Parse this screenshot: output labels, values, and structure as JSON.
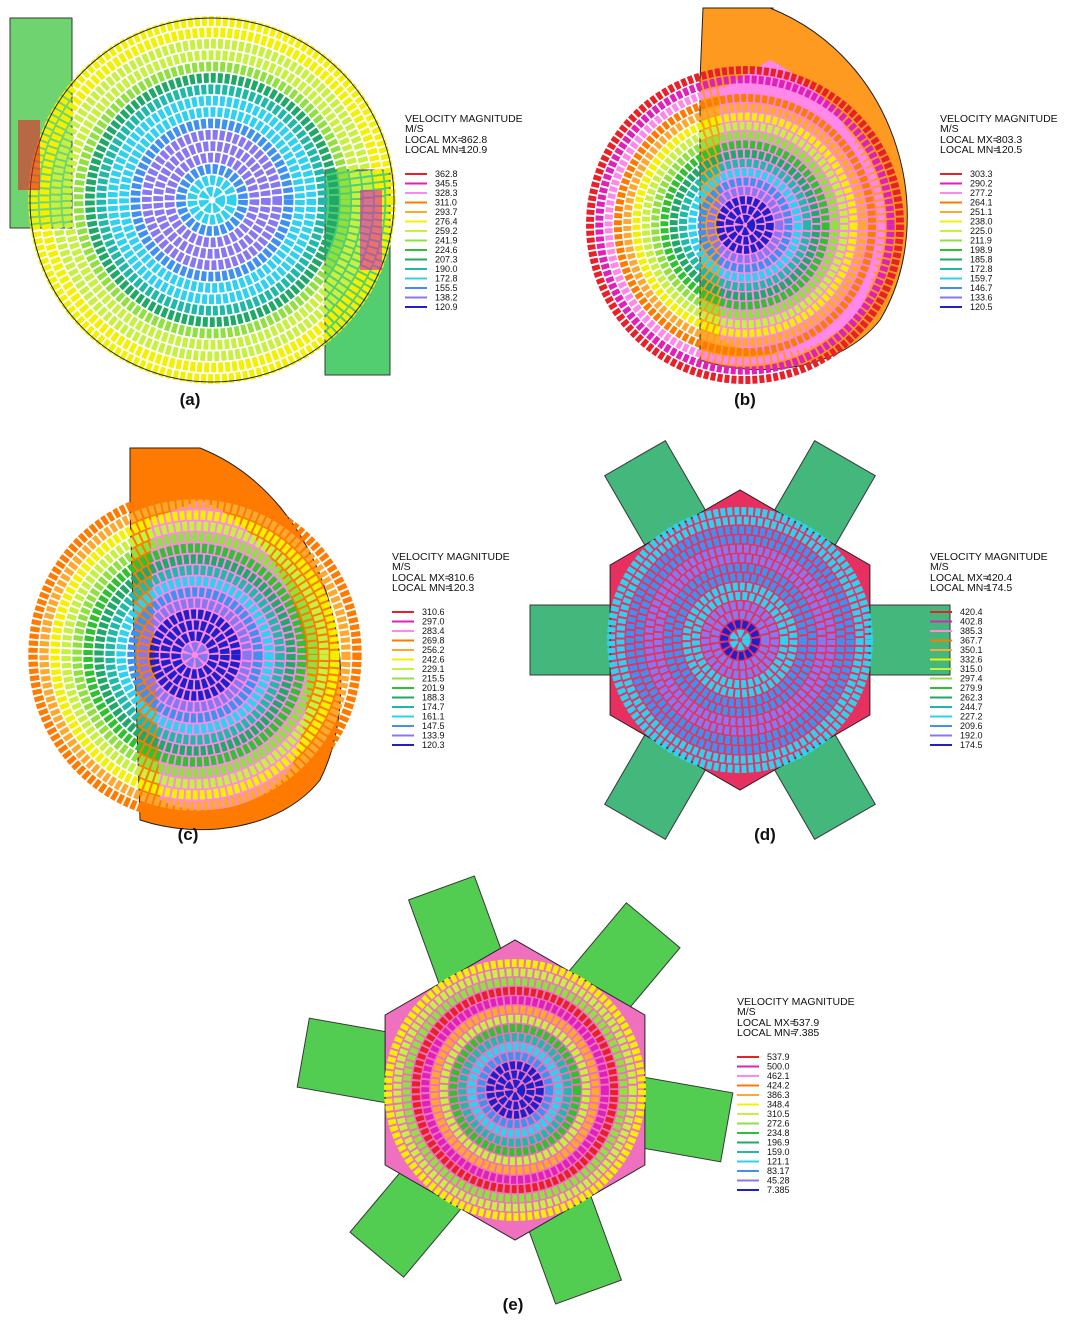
{
  "panels": [
    {
      "label": "(a)",
      "legend": {
        "title": "VELOCITY MAGNITUDE",
        "unit": "M/S",
        "mx_label": "LOCAL MX=",
        "mx": "362.8",
        "mn_label": "LOCAL MN=",
        "mn": "120.9",
        "levels": [
          "362.8",
          "345.5",
          "328.3",
          "311.0",
          "293.7",
          "276.4",
          "259.2",
          "241.9",
          "224.6",
          "207.3",
          "190.0",
          "172.8",
          "155.5",
          "138.2",
          "120.9"
        ]
      }
    },
    {
      "label": "(b)",
      "legend": {
        "title": "VELOCITY MAGNITUDE",
        "unit": "M/S",
        "mx_label": "LOCAL MX=",
        "mx": "303.3",
        "mn_label": "LOCAL MN=",
        "mn": "120.5",
        "levels": [
          "303.3",
          "290.2",
          "277.2",
          "264.1",
          "251.1",
          "238.0",
          "225.0",
          "211.9",
          "198.9",
          "185.8",
          "172.8",
          "159.7",
          "146.7",
          "133.6",
          "120.5"
        ]
      }
    },
    {
      "label": "(c)",
      "legend": {
        "title": "VELOCITY MAGNITUDE",
        "unit": "M/S",
        "mx_label": "LOCAL MX=",
        "mx": "310.6",
        "mn_label": "LOCAL MN=",
        "mn": "120.3",
        "levels": [
          "310.6",
          "297.0",
          "283.4",
          "269.8",
          "256.2",
          "242.6",
          "229.1",
          "215.5",
          "201.9",
          "188.3",
          "174.7",
          "161.1",
          "147.5",
          "133.9",
          "120.3"
        ]
      }
    },
    {
      "label": "(d)",
      "legend": {
        "title": "VELOCITY MAGNITUDE",
        "unit": "M/S",
        "mx_label": "LOCAL MX=",
        "mx": "420.4",
        "mn_label": "LOCAL MN=",
        "mn": "174.5",
        "levels": [
          "420.4",
          "402.8",
          "385.3",
          "367.7",
          "350.1",
          "332.6",
          "315.0",
          "297.4",
          "279.9",
          "262.3",
          "244.7",
          "227.2",
          "209.6",
          "192.0",
          "174.5"
        ]
      }
    },
    {
      "label": "(e)",
      "legend": {
        "title": "VELOCITY MAGNITUDE",
        "unit": "M/S",
        "mx_label": "LOCAL MX=",
        "mx": "537.9",
        "mn_label": "LOCAL MN=",
        "mn": "7.385",
        "levels": [
          "537.9",
          "500.0",
          "462.1",
          "424.2",
          "386.3",
          "348.4",
          "310.5",
          "272.6",
          "234.8",
          "196.9",
          "159.0",
          "121.1",
          "83.17",
          "45.28",
          "7.385"
        ]
      }
    }
  ]
}
